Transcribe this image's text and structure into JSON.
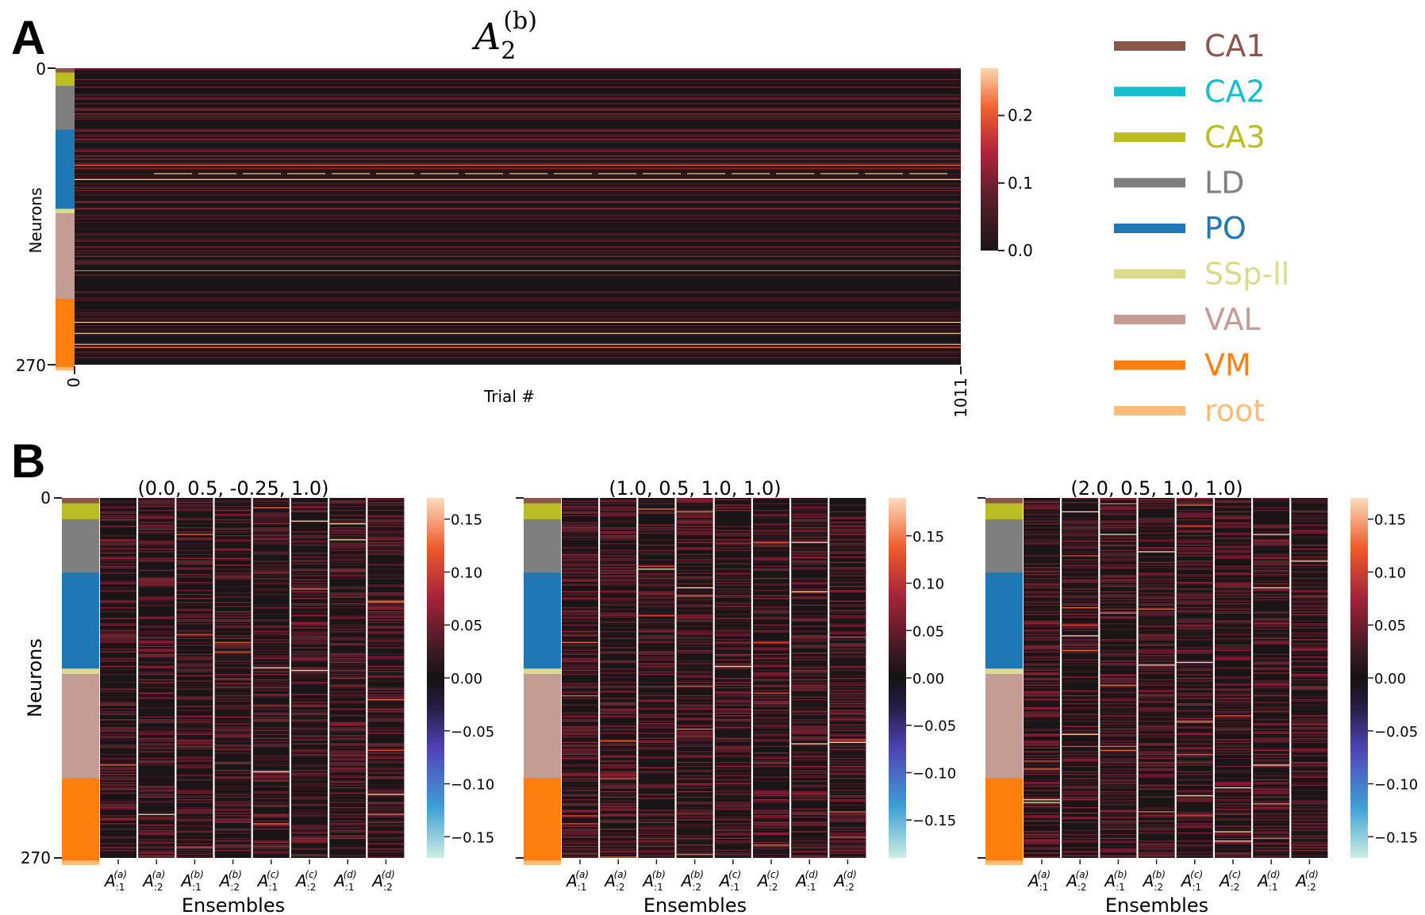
{
  "panel_labels": [
    "A",
    "B"
  ],
  "regions": [
    {
      "name": "CA1",
      "color": "#8c564b",
      "count": 4
    },
    {
      "name": "CA2",
      "color": "#17becf",
      "count": 0
    },
    {
      "name": "CA3",
      "color": "#bcbd22",
      "count": 12
    },
    {
      "name": "LD",
      "color": "#7f7f7f",
      "count": 40
    },
    {
      "name": "PO",
      "color": "#1f77b4",
      "count": 72
    },
    {
      "name": "SSp-ll",
      "color": "#dbdb8d",
      "count": 4
    },
    {
      "name": "VAL",
      "color": "#c49c94",
      "count": 78
    },
    {
      "name": "VM",
      "color": "#ff7f0e",
      "count": 62
    },
    {
      "name": "root",
      "color": "#ffbb78",
      "count": 3
    }
  ],
  "chart_data": [
    {
      "type": "heatmap",
      "panel": "A",
      "title_base": "A",
      "title_sub": "2",
      "title_sup": "(b)",
      "xlabel": "Trial #",
      "ylabel": "Neurons",
      "x_ticks": [
        "0",
        "1011"
      ],
      "y_ticks": [
        "0",
        "270"
      ],
      "n_rows": 270,
      "n_trials": 1012,
      "colorbar": {
        "min": 0.0,
        "max": 0.27,
        "ticks": [
          "0.0",
          "0.1",
          "0.2"
        ],
        "tick_values": [
          0.0,
          0.1,
          0.2
        ]
      },
      "bright_rows": [
        88,
        101,
        184,
        231,
        241,
        251,
        254
      ]
    },
    {
      "type": "heatmap",
      "panel": "B",
      "title": "(0.0, 0.5, -0.25, 1.0)",
      "xlabel": "Ensembles",
      "ylabel": "Neurons",
      "y_ticks": [
        "0",
        "270"
      ],
      "columns": [
        {
          "base": "A",
          "sub": ":1",
          "sup": "(a)"
        },
        {
          "base": "A",
          "sub": ":2",
          "sup": "(a)"
        },
        {
          "base": "A",
          "sub": ":1",
          "sup": "(b)"
        },
        {
          "base": "A",
          "sub": ":2",
          "sup": "(b)"
        },
        {
          "base": "A",
          "sub": ":1",
          "sup": "(c)"
        },
        {
          "base": "A",
          "sub": ":2",
          "sup": "(c)"
        },
        {
          "base": "A",
          "sub": ":1",
          "sup": "(d)"
        },
        {
          "base": "A",
          "sub": ":2",
          "sup": "(d)"
        }
      ],
      "colorbar": {
        "min": -0.17,
        "max": 0.17,
        "ticks": [
          "−0.15",
          "−0.10",
          "−0.05",
          "0.00",
          "0.05",
          "0.10",
          "0.15"
        ],
        "tick_values": [
          -0.15,
          -0.1,
          -0.05,
          0.0,
          0.05,
          0.1,
          0.15
        ]
      }
    },
    {
      "type": "heatmap",
      "panel": "B",
      "title": "(1.0, 0.5, 1.0, 1.0)",
      "xlabel": "Ensembles",
      "ylabel": "",
      "y_ticks": [],
      "columns": [
        {
          "base": "A",
          "sub": ":1",
          "sup": "(a)"
        },
        {
          "base": "A",
          "sub": ":2",
          "sup": "(a)"
        },
        {
          "base": "A",
          "sub": ":1",
          "sup": "(b)"
        },
        {
          "base": "A",
          "sub": ":2",
          "sup": "(b)"
        },
        {
          "base": "A",
          "sub": ":1",
          "sup": "(c)"
        },
        {
          "base": "A",
          "sub": ":2",
          "sup": "(c)"
        },
        {
          "base": "A",
          "sub": ":1",
          "sup": "(d)"
        },
        {
          "base": "A",
          "sub": ":2",
          "sup": "(d)"
        }
      ],
      "colorbar": {
        "min": -0.19,
        "max": 0.19,
        "ticks": [
          "−0.15",
          "−0.10",
          "−0.05",
          "0.00",
          "0.05",
          "0.10",
          "0.15"
        ],
        "tick_values": [
          -0.15,
          -0.1,
          -0.05,
          0.0,
          0.05,
          0.1,
          0.15
        ]
      }
    },
    {
      "type": "heatmap",
      "panel": "B",
      "title": "(2.0, 0.5, 1.0, 1.0)",
      "xlabel": "Ensembles",
      "ylabel": "",
      "y_ticks": [],
      "columns": [
        {
          "base": "A",
          "sub": ":1",
          "sup": "(a)"
        },
        {
          "base": "A",
          "sub": ":2",
          "sup": "(a)"
        },
        {
          "base": "A",
          "sub": ":1",
          "sup": "(b)"
        },
        {
          "base": "A",
          "sub": ":2",
          "sup": "(b)"
        },
        {
          "base": "A",
          "sub": ":1",
          "sup": "(c)"
        },
        {
          "base": "A",
          "sub": ":2",
          "sup": "(c)"
        },
        {
          "base": "A",
          "sub": ":1",
          "sup": "(d)"
        },
        {
          "base": "A",
          "sub": ":2",
          "sup": "(d)"
        }
      ],
      "colorbar": {
        "min": -0.17,
        "max": 0.17,
        "ticks": [
          "−0.15",
          "−0.10",
          "−0.05",
          "0.00",
          "0.05",
          "0.10",
          "0.15"
        ],
        "tick_values": [
          -0.15,
          -0.1,
          -0.05,
          0.0,
          0.05,
          0.1,
          0.15
        ]
      }
    }
  ]
}
